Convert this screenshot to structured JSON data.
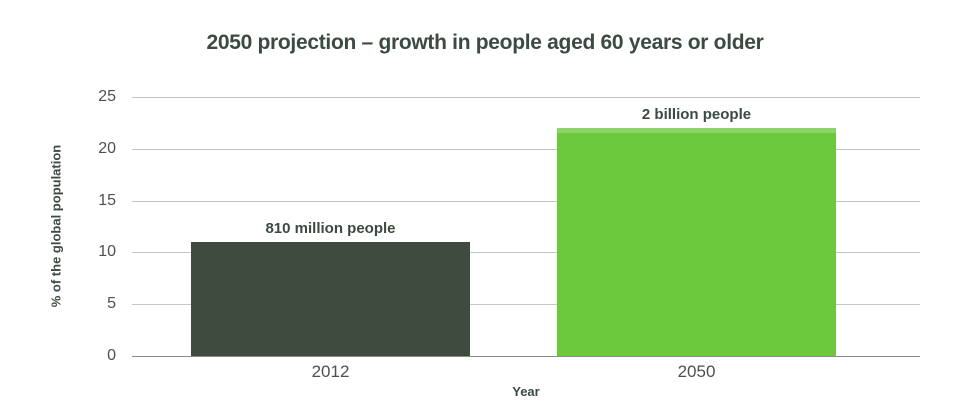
{
  "chart_data": {
    "type": "bar",
    "title": "2050 projection – growth in people aged 60 years or older",
    "xlabel": "Year",
    "ylabel": "% of the global population",
    "categories": [
      "2012",
      "2050"
    ],
    "values": [
      11,
      22
    ],
    "bar_labels": [
      "810 million people",
      "2 billion people"
    ],
    "bar_colors": [
      "#3e4b3e",
      "#6cc83c"
    ],
    "bar_top_highlight": [
      false,
      true
    ],
    "ylim": [
      0,
      25
    ],
    "yticks": [
      0,
      5,
      10,
      15,
      20,
      25
    ],
    "grid": true,
    "legend_position": "none"
  },
  "colors": {
    "background": "#ffffff",
    "text_dark": "#3c4a40",
    "tick_text": "#4f4f4f",
    "gridline": "#c6c6c6",
    "axis_line": "#8c8c8c"
  }
}
